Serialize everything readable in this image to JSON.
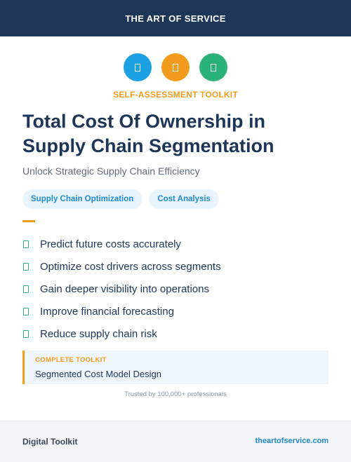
{
  "header": {
    "brand": "THE ART OF SERVICE"
  },
  "icons": [
    {
      "name": "square-icon",
      "color": "#1ba0e2"
    },
    {
      "name": "square-icon",
      "color": "#f29b1d"
    },
    {
      "name": "square-icon",
      "color": "#2ab27b"
    }
  ],
  "kicker": "SELF-ASSESSMENT TOOLKIT",
  "title": "Total Cost Of Ownership in Supply Chain Segmentation",
  "subtitle": "Unlock Strategic Supply Chain Efficiency",
  "tags": [
    "Supply Chain Optimization",
    "Cost Analysis"
  ],
  "benefits": [
    "Predict future costs accurately",
    "Optimize cost drivers across segments",
    "Gain deeper visibility into operations",
    "Improve financial forecasting",
    "Reduce supply chain risk"
  ],
  "callout": {
    "label": "COMPLETE TOOLKIT",
    "value": "Segmented Cost Model Design"
  },
  "trusted": "Trusted by 100,000+ professionals",
  "footer": {
    "left": "Digital Toolkit",
    "right": "theartofservice.com"
  },
  "colors": {
    "navy": "#1d3557",
    "orange": "#f29b1d",
    "blue": "#1ba0e2",
    "green": "#2ab27b"
  }
}
